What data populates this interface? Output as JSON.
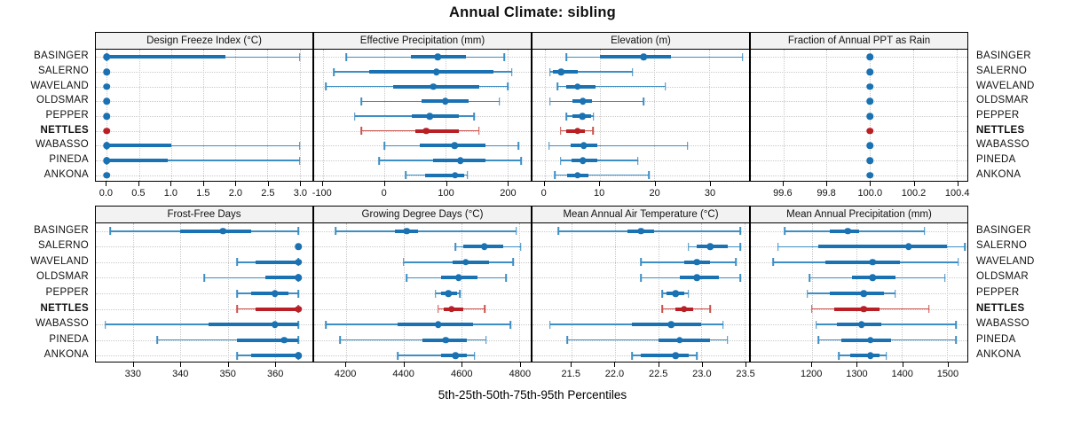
{
  "title": "Annual Climate: sibling",
  "caption": "5th-25th-50th-75th-95th Percentiles",
  "colors": {
    "blue": "#1a72b2",
    "blue_light": "#3d8ec4",
    "red": "#b92025",
    "red_light": "#c9534d",
    "header_bg": "#f2f2f2",
    "grid": "#c9c9c9",
    "border": "#000000"
  },
  "chart_data": {
    "type": "scatter",
    "subtype": "percentile-dotplot-trellis",
    "percentile_labels": [
      "5th",
      "25th",
      "50th",
      "75th",
      "95th"
    ],
    "sites": [
      "BASINGER",
      "SALERNO",
      "WAVELAND",
      "OLDSMAR",
      "PEPPER",
      "NETTLES",
      "WABASSO",
      "PINEDA",
      "ANKONA"
    ],
    "highlight_site": "NETTLES",
    "legend_position": "none",
    "grid": "dotted",
    "panels": [
      {
        "title": "Design Freeze Index (°C)",
        "row": 0,
        "col": 0,
        "xlim": [
          -0.17,
          3.2
        ],
        "ticks": [
          0.0,
          0.5,
          1.0,
          1.5,
          2.0,
          2.5,
          3.0
        ],
        "tick_labels": [
          "0.0",
          "0.5",
          "1.0",
          "1.5",
          "2.0",
          "2.5",
          "3.0"
        ],
        "values": [
          [
            0,
            0,
            0,
            1.85,
            3.0
          ],
          [
            0,
            0,
            0,
            0,
            0
          ],
          [
            0,
            0,
            0,
            0,
            0
          ],
          [
            0,
            0,
            0,
            0,
            0
          ],
          [
            0,
            0,
            0,
            0,
            0
          ],
          [
            0,
            0,
            0,
            0,
            0
          ],
          [
            0,
            0,
            0,
            1.0,
            3.0
          ],
          [
            0,
            0,
            0,
            0.95,
            3.0
          ],
          [
            0,
            0,
            0,
            0,
            0
          ]
        ]
      },
      {
        "title": "Effective Precipitation (mm)",
        "row": 0,
        "col": 1,
        "xlim": [
          -114,
          238
        ],
        "ticks": [
          -100,
          0,
          100,
          200
        ],
        "tick_labels": [
          "-100",
          "0",
          "100",
          "200"
        ],
        "values": [
          [
            -62,
            43,
            87,
            132,
            195
          ],
          [
            -82,
            -25,
            85,
            177,
            207
          ],
          [
            -95,
            14,
            80,
            154,
            201
          ],
          [
            -37,
            61,
            99,
            137,
            187
          ],
          [
            -48,
            44,
            74,
            121,
            146
          ],
          [
            -37,
            50,
            68,
            121,
            154
          ],
          [
            0,
            58,
            114,
            165,
            218
          ],
          [
            -8,
            80,
            124,
            165,
            222
          ],
          [
            35,
            66,
            115,
            130,
            135
          ]
        ]
      },
      {
        "title": "Elevation (m)",
        "row": 0,
        "col": 2,
        "xlim": [
          -2.2,
          37.2
        ],
        "ticks": [
          0,
          10,
          20,
          30
        ],
        "tick_labels": [
          "0",
          "10",
          "20",
          "30"
        ],
        "values": [
          [
            4,
            10,
            18,
            23,
            36
          ],
          [
            1,
            1.5,
            3,
            6,
            16
          ],
          [
            2.4,
            4,
            6,
            9.2,
            22
          ],
          [
            1,
            5,
            7,
            8.7,
            18
          ],
          [
            4,
            5,
            6.9,
            8.4,
            8.9
          ],
          [
            2.9,
            3.9,
            6,
            7.3,
            8.8
          ],
          [
            0.8,
            4.7,
            7.1,
            9.6,
            26
          ],
          [
            2.9,
            4.9,
            7,
            9.6,
            17
          ],
          [
            1.9,
            4.1,
            6,
            7.9,
            19
          ]
        ]
      },
      {
        "title": "Fraction of Annual PPT as Rain",
        "row": 0,
        "col": 3,
        "xlim": [
          99.45,
          100.45
        ],
        "ticks": [
          99.6,
          99.8,
          100.0,
          100.2,
          100.4
        ],
        "tick_labels": [
          "99.6",
          "99.8",
          "100.0",
          "100.2",
          "100.4"
        ],
        "values": [
          [
            100,
            100,
            100,
            100,
            100
          ],
          [
            100,
            100,
            100,
            100,
            100
          ],
          [
            100,
            100,
            100,
            100,
            100
          ],
          [
            100,
            100,
            100,
            100,
            100
          ],
          [
            100,
            100,
            100,
            100,
            100
          ],
          [
            100,
            100,
            100,
            100,
            100
          ],
          [
            100,
            100,
            100,
            100,
            100
          ],
          [
            100,
            100,
            100,
            100,
            100
          ],
          [
            100,
            100,
            100,
            100,
            100
          ]
        ]
      },
      {
        "title": "Frost-Free Days",
        "row": 1,
        "col": 0,
        "xlim": [
          322,
          368
        ],
        "ticks": [
          330,
          340,
          350,
          360
        ],
        "tick_labels": [
          "330",
          "340",
          "350",
          "360"
        ],
        "values": [
          [
            325,
            340,
            349,
            355,
            365
          ],
          [
            365,
            365,
            365,
            365,
            365
          ],
          [
            352,
            356,
            365,
            365,
            365
          ],
          [
            345,
            358,
            365,
            365,
            365
          ],
          [
            352,
            355,
            360,
            363,
            365
          ],
          [
            352,
            356,
            365,
            365,
            365
          ],
          [
            324,
            346,
            360,
            365,
            365
          ],
          [
            335,
            352,
            362,
            365,
            365
          ],
          [
            352,
            355,
            365,
            365,
            365
          ]
        ]
      },
      {
        "title": "Growing Degree Days (°C)",
        "row": 1,
        "col": 1,
        "xlim": [
          4090,
          4840
        ],
        "ticks": [
          4200,
          4400,
          4600,
          4800
        ],
        "tick_labels": [
          "4200",
          "4400",
          "4600",
          "4800"
        ],
        "values": [
          [
            4165,
            4370,
            4410,
            4450,
            4790
          ],
          [
            4580,
            4605,
            4680,
            4745,
            4805
          ],
          [
            4400,
            4570,
            4615,
            4695,
            4780
          ],
          [
            4410,
            4530,
            4590,
            4655,
            4755
          ],
          [
            4510,
            4530,
            4555,
            4585,
            4595
          ],
          [
            4520,
            4540,
            4565,
            4605,
            4680
          ],
          [
            4130,
            4380,
            4520,
            4640,
            4770
          ],
          [
            4180,
            4465,
            4545,
            4620,
            4685
          ],
          [
            4380,
            4530,
            4580,
            4620,
            4645
          ]
        ]
      },
      {
        "title": "Mean Annual Air Temperature (°C)",
        "row": 1,
        "col": 2,
        "xlim": [
          21.05,
          23.55
        ],
        "ticks": [
          21.5,
          22.0,
          22.5,
          23.0,
          23.5
        ],
        "tick_labels": [
          "21.5",
          "22.0",
          "22.5",
          "23.0",
          "23.5"
        ],
        "values": [
          [
            21.35,
            22.15,
            22.3,
            22.45,
            23.45
          ],
          [
            22.85,
            22.95,
            23.1,
            23.3,
            23.45
          ],
          [
            22.3,
            22.8,
            22.95,
            23.1,
            23.4
          ],
          [
            22.3,
            22.75,
            22.95,
            23.2,
            23.45
          ],
          [
            22.55,
            22.6,
            22.7,
            22.8,
            22.85
          ],
          [
            22.55,
            22.7,
            22.8,
            22.9,
            23.1
          ],
          [
            21.25,
            22.2,
            22.65,
            23.0,
            23.25
          ],
          [
            21.45,
            22.5,
            22.75,
            23.1,
            23.3
          ],
          [
            22.2,
            22.3,
            22.7,
            22.85,
            22.95
          ]
        ]
      },
      {
        "title": "Mean Annual Precipitation (mm)",
        "row": 1,
        "col": 3,
        "xlim": [
          1065,
          1545
        ],
        "ticks": [
          1200,
          1300,
          1400,
          1500
        ],
        "tick_labels": [
          "1200",
          "1300",
          "1400",
          "1500"
        ],
        "values": [
          [
            1140,
            1240,
            1280,
            1305,
            1450
          ],
          [
            1125,
            1215,
            1415,
            1500,
            1540
          ],
          [
            1115,
            1230,
            1335,
            1395,
            1525
          ],
          [
            1195,
            1290,
            1335,
            1385,
            1495
          ],
          [
            1190,
            1240,
            1315,
            1360,
            1385
          ],
          [
            1200,
            1250,
            1315,
            1350,
            1460
          ],
          [
            1210,
            1255,
            1310,
            1355,
            1520
          ],
          [
            1215,
            1265,
            1330,
            1375,
            1520
          ],
          [
            1260,
            1285,
            1330,
            1350,
            1365
          ]
        ]
      }
    ]
  }
}
